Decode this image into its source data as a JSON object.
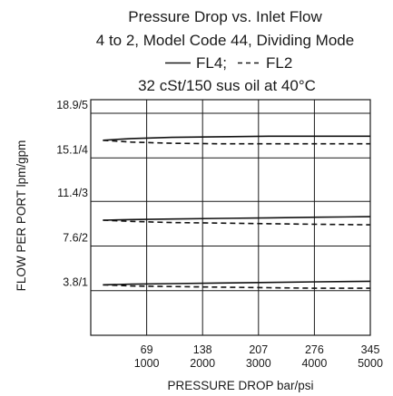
{
  "chart_data": {
    "type": "line",
    "title_lines": [
      "Pressure Drop vs. Inlet Flow",
      "4 to 2, Model Code 44, Dividing Mode"
    ],
    "legend_line": {
      "solid_text": "FL4;",
      "dash_text": "FL2"
    },
    "condition": "32 cSt/150 sus oil at 40°C",
    "xlabel": "PRESSURE DROP bar/psi",
    "ylabel": "FLOW PER PORT lpm/gpm",
    "x_ticks": [
      {
        "value": 69,
        "bar": "69",
        "psi": "1000"
      },
      {
        "value": 138,
        "bar": "138",
        "psi": "2000"
      },
      {
        "value": 207,
        "bar": "207",
        "psi": "3000"
      },
      {
        "value": 276,
        "bar": "276",
        "psi": "4000"
      },
      {
        "value": 345,
        "bar": "345",
        "psi": "5000"
      }
    ],
    "y_ticks": [
      {
        "value": 3.8,
        "label": "3.8/1"
      },
      {
        "value": 7.6,
        "label": "7.6/2"
      },
      {
        "value": 11.4,
        "label": "11.4/3"
      },
      {
        "value": 15.1,
        "label": "15.1/4"
      },
      {
        "value": 18.9,
        "label": "18.9/5"
      }
    ],
    "xlim": [
      0,
      345
    ],
    "ylim": [
      0,
      18.9
    ],
    "grid": true,
    "series": [
      {
        "name": "FL4",
        "style": "solid",
        "x": [
          15,
          50,
          100,
          160,
          220,
          280,
          345
        ],
        "values": [
          4.3,
          4.35,
          4.4,
          4.45,
          4.5,
          4.55,
          4.6
        ]
      },
      {
        "name": "FL2",
        "style": "dashed",
        "x": [
          15,
          50,
          100,
          160,
          220,
          280,
          345
        ],
        "values": [
          4.3,
          4.2,
          4.15,
          4.1,
          4.05,
          4.0,
          4.0
        ]
      },
      {
        "name": "FL4",
        "style": "solid",
        "x": [
          15,
          50,
          100,
          160,
          220,
          280,
          345
        ],
        "values": [
          9.8,
          9.85,
          9.9,
          9.95,
          10.0,
          10.05,
          10.1
        ]
      },
      {
        "name": "FL2",
        "style": "dashed",
        "x": [
          15,
          50,
          100,
          160,
          220,
          280,
          345
        ],
        "values": [
          9.8,
          9.7,
          9.6,
          9.55,
          9.5,
          9.45,
          9.4
        ]
      },
      {
        "name": "FL4",
        "style": "solid",
        "x": [
          15,
          50,
          100,
          160,
          220,
          280,
          345
        ],
        "values": [
          16.6,
          16.75,
          16.85,
          16.9,
          16.95,
          16.95,
          16.95
        ]
      },
      {
        "name": "FL2",
        "style": "dashed",
        "x": [
          15,
          50,
          100,
          160,
          220,
          280,
          345
        ],
        "values": [
          16.6,
          16.45,
          16.35,
          16.3,
          16.3,
          16.3,
          16.3
        ]
      }
    ]
  }
}
